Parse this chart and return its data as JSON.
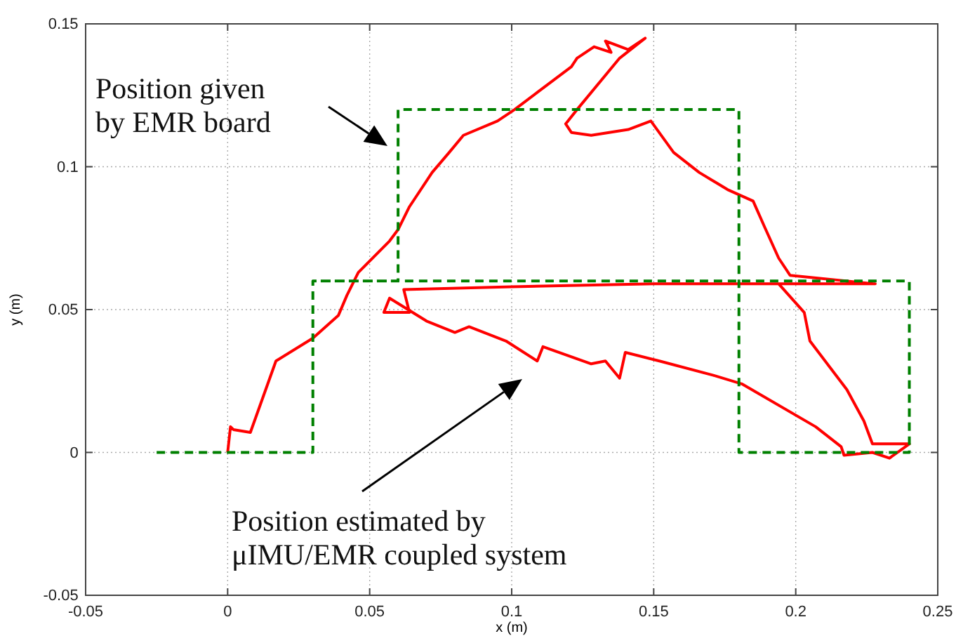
{
  "chart_data": {
    "type": "line",
    "xlabel": "x (m)",
    "ylabel": "y (m)",
    "xlim": [
      -0.05,
      0.25
    ],
    "ylim": [
      -0.05,
      0.15
    ],
    "xticks": [
      -0.05,
      0,
      0.05,
      0.1,
      0.15,
      0.2,
      0.25
    ],
    "yticks": [
      -0.05,
      0,
      0.05,
      0.1,
      0.15
    ],
    "grid": true,
    "marker": "none",
    "series": [
      {
        "color": "#ff0000",
        "line_style": "solid",
        "x": [
          0,
          0.001,
          0.002,
          0.008,
          0.017,
          0.03,
          0.039,
          0.042,
          0.046,
          0.057,
          0.06,
          0.064,
          0.072,
          0.078,
          0.083,
          0.095,
          0.101,
          0.109,
          0.121,
          0.123,
          0.129,
          0.135,
          0.133,
          0.141,
          0.147,
          0.138,
          0.123,
          0.119,
          0.121,
          0.128,
          0.141,
          0.149,
          0.157,
          0.166,
          0.176,
          0.185,
          0.189,
          0.194,
          0.198,
          0.228,
          0.15,
          0.1,
          0.062,
          0.064,
          0.055,
          0.057,
          0.07,
          0.08,
          0.085,
          0.098,
          0.109,
          0.111,
          0.128,
          0.133,
          0.138,
          0.14,
          0.152,
          0.171,
          0.181,
          0.207,
          0.216,
          0.217,
          0.227,
          0.233,
          0.24,
          0.227,
          0.224,
          0.218,
          0.205,
          0.203,
          0.194
        ],
        "values": [
          0,
          0.009,
          0.008,
          0.007,
          0.032,
          0.04,
          0.048,
          0.055,
          0.063,
          0.074,
          0.078,
          0.086,
          0.098,
          0.105,
          0.111,
          0.116,
          0.12,
          0.126,
          0.135,
          0.138,
          0.142,
          0.14,
          0.144,
          0.141,
          0.145,
          0.138,
          0.12,
          0.115,
          0.112,
          0.111,
          0.113,
          0.116,
          0.105,
          0.098,
          0.092,
          0.088,
          0.079,
          0.068,
          0.062,
          0.059,
          0.059,
          0.058,
          0.057,
          0.049,
          0.049,
          0.054,
          0.046,
          0.042,
          0.044,
          0.039,
          0.032,
          0.037,
          0.031,
          0.032,
          0.026,
          0.035,
          0.032,
          0.027,
          0.024,
          0.009,
          0.002,
          -0.001,
          0,
          -0.002,
          0.003,
          0.003,
          0.011,
          0.022,
          0.039,
          0.049,
          0.059
        ]
      },
      {
        "color": "#008000",
        "line_style": "dashed",
        "x": [
          -0.025,
          0.03,
          0.03,
          0.06,
          0.06,
          0.18,
          0.18,
          0.24,
          0.24,
          0.03
        ],
        "values": [
          0,
          0,
          0.06,
          0.06,
          0.12,
          0.12,
          0,
          0,
          0.06,
          0.06
        ]
      }
    ],
    "annotations": [
      "Position given\nby EMR board",
      "Position estimated by\nμIMU/EMR coupled system"
    ]
  }
}
